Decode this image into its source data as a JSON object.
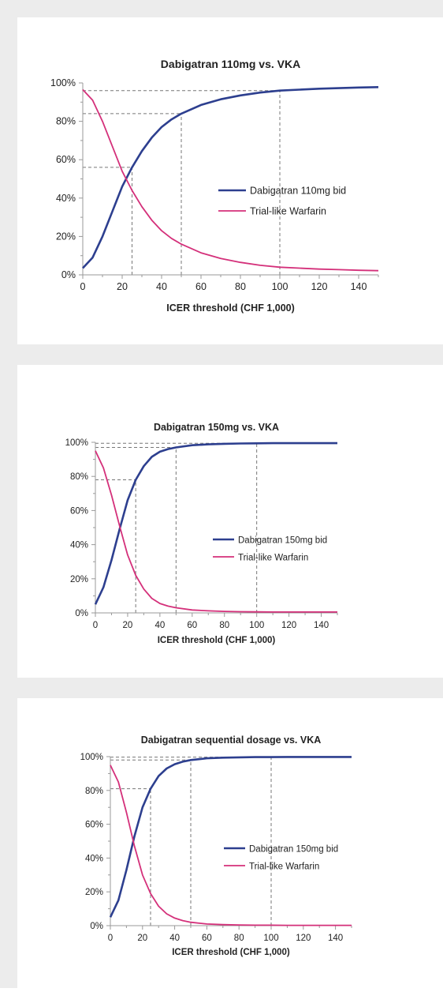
{
  "chart_data": [
    {
      "type": "line",
      "title": "Dabigatran 110mg vs. VKA",
      "xlabel": "ICER threshold (CHF 1,000)",
      "ylabel": "",
      "xlim": [
        0,
        150
      ],
      "ylim": [
        0,
        100
      ],
      "x_ticks": [
        "0",
        "20",
        "40",
        "60",
        "80",
        "100",
        "120",
        "140"
      ],
      "y_ticks": [
        "0%",
        "20%",
        "40%",
        "60%",
        "80%",
        "100%"
      ],
      "legend_position": "center-right",
      "grid": false,
      "series": [
        {
          "name": "Dabigatran 110mg bid",
          "color": "#2d3f8f",
          "x": [
            0,
            5,
            10,
            15,
            20,
            25,
            30,
            35,
            40,
            45,
            50,
            60,
            70,
            80,
            90,
            100,
            110,
            120,
            130,
            140,
            150
          ],
          "y": [
            3.5,
            9,
            20,
            33,
            46,
            56,
            64.5,
            71.5,
            77,
            81,
            84,
            88.5,
            91.5,
            93.5,
            95,
            96,
            96.5,
            97,
            97.3,
            97.6,
            97.8
          ]
        },
        {
          "name": "Trial-like Warfarin",
          "color": "#d4307a",
          "x": [
            0,
            5,
            10,
            15,
            20,
            25,
            30,
            35,
            40,
            45,
            50,
            60,
            70,
            80,
            90,
            100,
            110,
            120,
            130,
            140,
            150
          ],
          "y": [
            96.5,
            91,
            80,
            67,
            54,
            44,
            35.5,
            28.5,
            23,
            19,
            16,
            11.5,
            8.5,
            6.5,
            5,
            4,
            3.5,
            3,
            2.7,
            2.4,
            2.2
          ]
        }
      ],
      "reference_lines": [
        {
          "x": 25,
          "y": 56
        },
        {
          "x": 50,
          "y": 84
        },
        {
          "x": 100,
          "y": 96
        }
      ]
    },
    {
      "type": "line",
      "title": "Dabigatran 150mg vs. VKA",
      "xlabel": "ICER threshold (CHF 1,000)",
      "ylabel": "",
      "xlim": [
        0,
        150
      ],
      "ylim": [
        0,
        100
      ],
      "x_ticks": [
        "0",
        "20",
        "40",
        "60",
        "80",
        "100",
        "120",
        "140"
      ],
      "y_ticks": [
        "0%",
        "20%",
        "40%",
        "60%",
        "80%",
        "100%"
      ],
      "legend_position": "center-right",
      "grid": false,
      "series": [
        {
          "name": "Dabigatran 150mg bid",
          "color": "#2d3f8f",
          "x": [
            0,
            5,
            10,
            15,
            20,
            25,
            30,
            35,
            40,
            45,
            50,
            60,
            70,
            80,
            90,
            100,
            110,
            120,
            130,
            140,
            150
          ],
          "y": [
            5,
            15,
            31,
            49,
            66,
            78,
            86,
            91.5,
            94.5,
            96,
            97,
            98.3,
            98.8,
            99.1,
            99.3,
            99.4,
            99.5,
            99.5,
            99.5,
            99.5,
            99.5
          ]
        },
        {
          "name": "Trial-like Warfarin",
          "color": "#d4307a",
          "x": [
            0,
            5,
            10,
            15,
            20,
            25,
            30,
            35,
            40,
            45,
            50,
            60,
            70,
            80,
            90,
            100,
            110,
            120,
            130,
            140,
            150
          ],
          "y": [
            95,
            85,
            69,
            51,
            34,
            22,
            14,
            8.5,
            5.5,
            4,
            3,
            1.7,
            1.2,
            0.9,
            0.7,
            0.6,
            0.5,
            0.5,
            0.5,
            0.5,
            0.5
          ]
        }
      ],
      "reference_lines": [
        {
          "x": 25,
          "y": 78
        },
        {
          "x": 50,
          "y": 97
        },
        {
          "x": 100,
          "y": 99.4
        }
      ]
    },
    {
      "type": "line",
      "title": "Dabigatran sequential dosage vs. VKA",
      "xlabel": "ICER threshold (CHF 1,000)",
      "ylabel": "",
      "xlim": [
        0,
        150
      ],
      "ylim": [
        0,
        100
      ],
      "x_ticks": [
        "0",
        "20",
        "40",
        "60",
        "80",
        "100",
        "120",
        "140"
      ],
      "y_ticks": [
        "0%",
        "20%",
        "40%",
        "60%",
        "80%",
        "100%"
      ],
      "legend_position": "center-right",
      "grid": false,
      "series": [
        {
          "name": "Dabigatran 150mg bid",
          "color": "#2d3f8f",
          "x": [
            0,
            5,
            10,
            15,
            20,
            25,
            30,
            35,
            40,
            45,
            50,
            60,
            70,
            80,
            90,
            100,
            110,
            120,
            130,
            140,
            150
          ],
          "y": [
            5,
            15,
            33,
            53,
            70,
            81,
            88.5,
            93,
            95.5,
            97,
            98,
            99,
            99.4,
            99.6,
            99.7,
            99.7,
            99.8,
            99.8,
            99.8,
            99.8,
            99.8
          ]
        },
        {
          "name": "Trial-like Warfarin",
          "color": "#d4307a",
          "x": [
            0,
            5,
            10,
            15,
            20,
            25,
            30,
            35,
            40,
            45,
            50,
            60,
            70,
            80,
            90,
            100,
            110,
            120,
            130,
            140,
            150
          ],
          "y": [
            95,
            85,
            67,
            47,
            30,
            19,
            11.5,
            7,
            4.5,
            3,
            2,
            1,
            0.6,
            0.4,
            0.3,
            0.3,
            0.2,
            0.2,
            0.2,
            0.2,
            0.2
          ]
        }
      ],
      "reference_lines": [
        {
          "x": 25,
          "y": 81
        },
        {
          "x": 50,
          "y": 98
        },
        {
          "x": 100,
          "y": 99.7
        }
      ]
    }
  ]
}
